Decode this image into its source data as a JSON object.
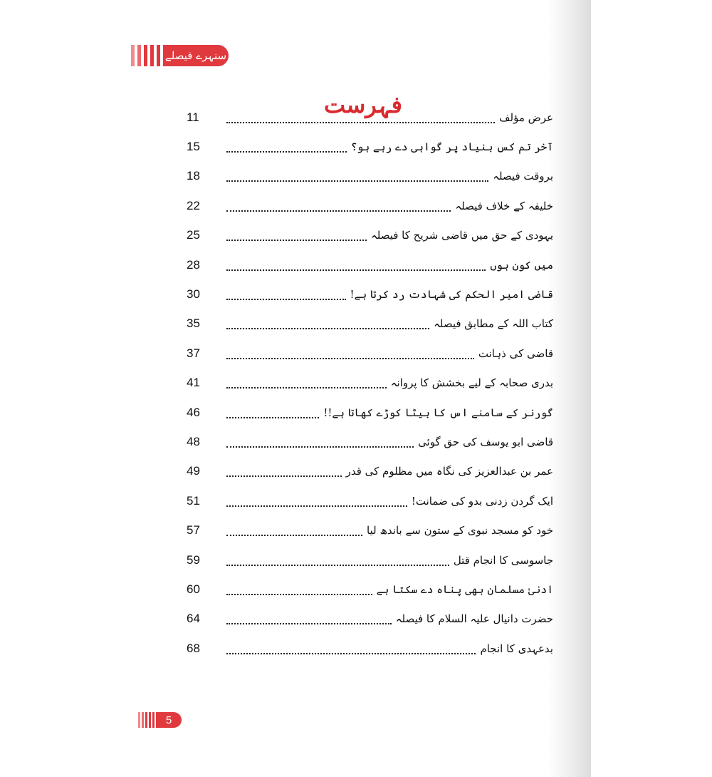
{
  "header": {
    "book_title": "سنہرے فیصلے"
  },
  "page_title": "فہرست",
  "entries": [
    {
      "title": "عرض مؤلف",
      "page": "11"
    },
    {
      "title": "آخر تم کس بنیاد پر گواہی دے رہے ہو؟",
      "page": "15"
    },
    {
      "title": "بروقت فیصلہ",
      "page": "18"
    },
    {
      "title": "خلیفہ کے خلاف فیصلہ",
      "page": "22"
    },
    {
      "title": "یہودی کے حق میں قاضی شریح کا فیصلہ",
      "page": "25"
    },
    {
      "title": "میں کون ہوں",
      "page": "28"
    },
    {
      "title": "قاضی امیر الحکم کی شہادت رد کرتا ہے!",
      "page": "30"
    },
    {
      "title": "کتاب اللہ کے مطابق فیصلہ",
      "page": "35"
    },
    {
      "title": "قاضی کی ذہانت",
      "page": "37"
    },
    {
      "title": "بدری صحابہ کے لیے بخشش کا پروانہ",
      "page": "41"
    },
    {
      "title": "گورنر کے سامنے اس کا بیٹا کوڑے کھاتا ہے!!",
      "page": "46"
    },
    {
      "title": "قاضی ابو یوسف کی حق گوئی",
      "page": "48"
    },
    {
      "title": "عمر بن عبدالعزیز کی نگاہ میں مظلوم کی قدر",
      "page": "49"
    },
    {
      "title": "ایک گردن زدنی بدو کی ضمانت!",
      "page": "51"
    },
    {
      "title": "خود کو مسجد نبوی کے ستون سے باندھ لیا",
      "page": "57"
    },
    {
      "title": "جاسوسی کا انجام قتل",
      "page": "59"
    },
    {
      "title": "ادنیٰ مسلمان بھی پناہ دے سکتا ہے",
      "page": "60"
    },
    {
      "title": "حضرت دانیال علیہ السلام کا فیصلہ",
      "page": "64"
    },
    {
      "title": "بدعہدی کا انجام",
      "page": "68"
    }
  ],
  "footer": {
    "page_number": "5"
  },
  "colors": {
    "accent": "#e0393e",
    "title": "#d92a30"
  }
}
